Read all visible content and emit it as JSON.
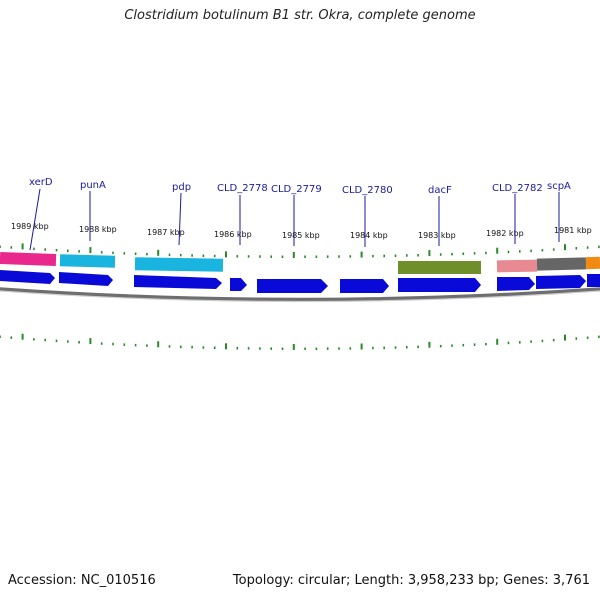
{
  "title": "Clostridium botulinum B1 str. Okra, complete genome",
  "footer": {
    "accession": "Accession: NC_010516",
    "summary": "Topology: circular; Length: 3,958,233 bp; Genes: 3,761"
  },
  "colors": {
    "backbone": "#777777",
    "tick": "#2a8a2a",
    "label": "#1a1aa0",
    "cds": "#0a0ad8"
  },
  "kbp_labels": [
    "1989 kbp",
    "1988 kbp",
    "1987 kbp",
    "1986 kbp",
    "1985 kbp",
    "1984 kbp",
    "1983 kbp",
    "1982 kbp",
    "1981 kbp"
  ],
  "gene_labels": [
    "xerD",
    "punA",
    "pdp",
    "CLD_2778",
    "CLD_2779",
    "CLD_2780",
    "dacF",
    "CLD_2782",
    "scpA"
  ],
  "feature_colors": [
    "#e8288a",
    "#19b4e0",
    "#19b4e0",
    "#6f8f2a",
    "#e88a92",
    "#666666",
    "#f08a10"
  ]
}
